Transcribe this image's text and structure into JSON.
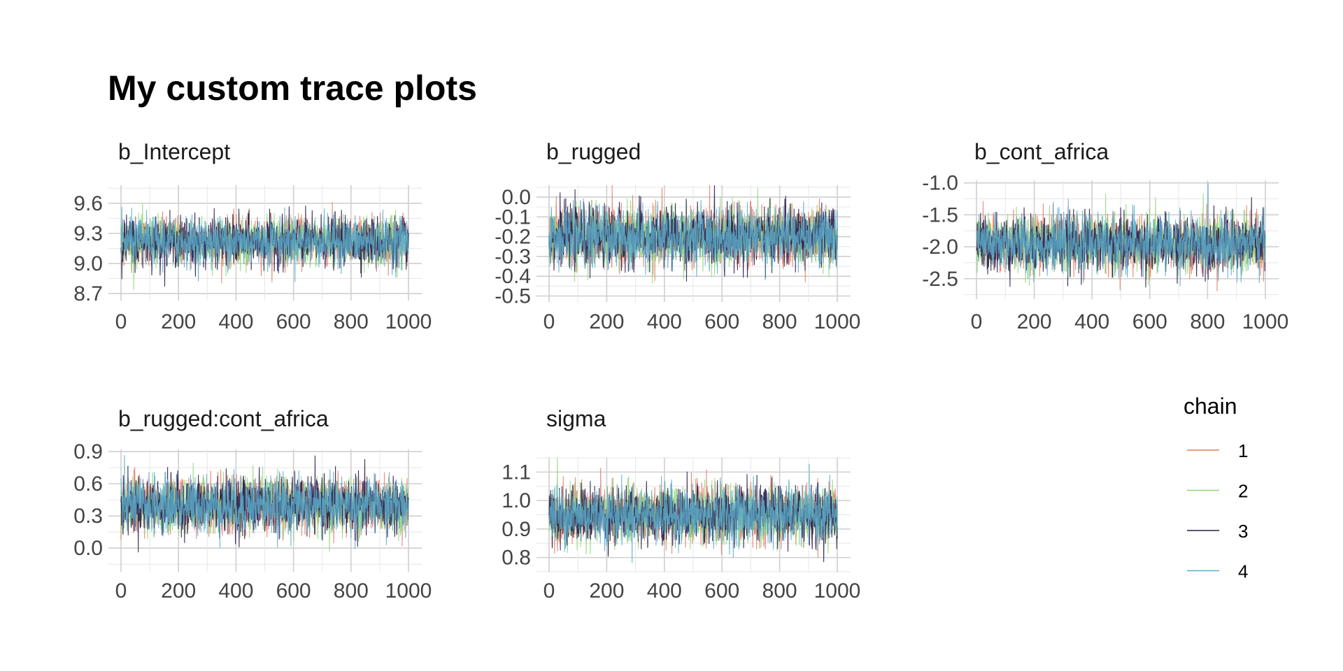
{
  "chart_data": {
    "type": "line",
    "title": "My custom trace plots",
    "legend": {
      "title": "chain",
      "placement": "right",
      "entries": [
        "1",
        "2",
        "3",
        "4"
      ]
    },
    "colors": {
      "1": "#e07b63",
      "2": "#8fd67a",
      "3": "#2b1d4a",
      "4": "#5aa9c9"
    },
    "grid": true,
    "iterations": [
      0,
      1000
    ],
    "x_ticks": [
      "0",
      "200",
      "400",
      "600",
      "800",
      "1000"
    ],
    "panels": [
      {
        "name": "b_Intercept",
        "ylim": [
          8.63,
          9.78
        ],
        "y_ticks": [
          "8.7",
          "9.0",
          "9.3",
          "9.6"
        ],
        "y_tick_values": [
          8.7,
          9.0,
          9.3,
          9.6
        ],
        "approx_mean": 9.22,
        "approx_sd": 0.12
      },
      {
        "name": "b_rugged",
        "ylim": [
          -0.53,
          0.06
        ],
        "y_ticks": [
          "-0.5",
          "-0.4",
          "-0.3",
          "-0.2",
          "-0.1",
          "0.0"
        ],
        "y_tick_values": [
          -0.5,
          -0.4,
          -0.3,
          -0.2,
          -0.1,
          0.0
        ],
        "approx_mean": -0.2,
        "approx_sd": 0.075
      },
      {
        "name": "b_cont_africa",
        "ylim": [
          -2.82,
          -0.96
        ],
        "y_ticks": [
          "-2.5",
          "-2.0",
          "-1.5",
          "-1.0"
        ],
        "y_tick_values": [
          -2.5,
          -2.0,
          -1.5,
          -1.0
        ],
        "approx_mean": -1.95,
        "approx_sd": 0.22
      },
      {
        "name": "b_rugged:cont_africa",
        "ylim": [
          -0.22,
          0.92
        ],
        "y_ticks": [
          "0.0",
          "0.3",
          "0.6",
          "0.9"
        ],
        "y_tick_values": [
          0.0,
          0.3,
          0.6,
          0.9
        ],
        "approx_mean": 0.4,
        "approx_sd": 0.13
      },
      {
        "name": "sigma",
        "ylim": [
          0.75,
          1.15
        ],
        "y_ticks": [
          "0.8",
          "0.9",
          "1.0",
          "1.1"
        ],
        "y_tick_values": [
          0.8,
          0.9,
          1.0,
          1.1
        ],
        "approx_mean": 0.95,
        "approx_sd": 0.05
      }
    ]
  }
}
